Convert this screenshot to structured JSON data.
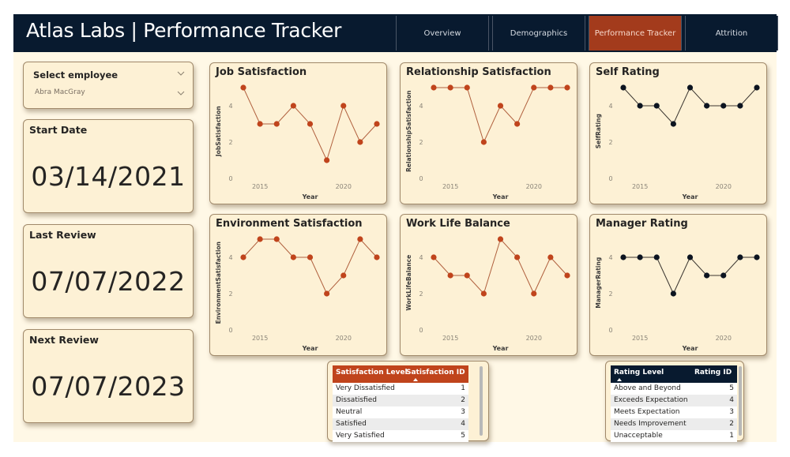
{
  "header": {
    "title": "Atlas Labs | Performance Tracker",
    "tabs": [
      {
        "label": "Overview",
        "active": false
      },
      {
        "label": "Demographics",
        "active": false
      },
      {
        "label": "Performance Tracker",
        "active": true
      },
      {
        "label": "Attrition",
        "active": false
      }
    ]
  },
  "slicer": {
    "label": "Select employee",
    "value": "Abra MacGray"
  },
  "kpis": {
    "start_date": {
      "label": "Start Date",
      "value": "03/14/2021"
    },
    "last_review": {
      "label": "Last Review",
      "value": "07/07/2022"
    },
    "next_review": {
      "label": "Next Review",
      "value": "07/07/2023"
    }
  },
  "colors": {
    "header_bg": "#081a2f",
    "accent": "#a33b1c",
    "page_bg": "#fff8e6",
    "card_bg": "#fdf1d5",
    "satisfaction_series": "#c0441c",
    "rating_series": "#0c1420"
  },
  "tables": {
    "satisfaction": {
      "columns": [
        "Satisfaction Level",
        "Satisfaction ID"
      ],
      "rows": [
        [
          "Very Dissatisfied",
          "1"
        ],
        [
          "Dissatisfied",
          "2"
        ],
        [
          "Neutral",
          "3"
        ],
        [
          "Satisfied",
          "4"
        ],
        [
          "Very Satisfied",
          "5"
        ]
      ]
    },
    "rating": {
      "columns": [
        "Rating Level",
        "Rating ID"
      ],
      "rows": [
        [
          "Above and Beyond",
          "5"
        ],
        [
          "Exceeds Expectation",
          "4"
        ],
        [
          "Meets Expectation",
          "3"
        ],
        [
          "Needs Improvement",
          "2"
        ],
        [
          "Unacceptable",
          "1"
        ]
      ]
    }
  },
  "chart_data": [
    {
      "type": "line",
      "title": "Job Satisfaction",
      "xlabel": "Year",
      "ylabel": "JobSatisfaction",
      "x": [
        2014,
        2015,
        2016,
        2017,
        2018,
        2019,
        2020,
        2021,
        2022
      ],
      "values": [
        5,
        3,
        3,
        4,
        3,
        1,
        4,
        2,
        3
      ],
      "xticks": [
        "2015",
        "2020"
      ],
      "yticks": [
        "0",
        "2",
        "4"
      ],
      "ylim": [
        0,
        5
      ],
      "color": "#c0441c",
      "grid": false
    },
    {
      "type": "line",
      "title": "Relationship Satisfaction",
      "xlabel": "Year",
      "ylabel": "RelationshipSatisfaction",
      "x": [
        2014,
        2015,
        2016,
        2017,
        2018,
        2019,
        2020,
        2021,
        2022
      ],
      "values": [
        5,
        5,
        5,
        2,
        4,
        3,
        5,
        5,
        5
      ],
      "xticks": [
        "2015",
        "2020"
      ],
      "yticks": [
        "0",
        "2",
        "4"
      ],
      "ylim": [
        0,
        5
      ],
      "color": "#c0441c",
      "grid": false
    },
    {
      "type": "line",
      "title": "Self Rating",
      "xlabel": "Year",
      "ylabel": "SelfRating",
      "x": [
        2014,
        2015,
        2016,
        2017,
        2018,
        2019,
        2020,
        2021,
        2022
      ],
      "values": [
        5,
        4,
        4,
        3,
        5,
        4,
        4,
        4,
        5
      ],
      "xticks": [
        "2015",
        "2020"
      ],
      "yticks": [
        "0",
        "2",
        "4"
      ],
      "ylim": [
        0,
        5
      ],
      "color": "#0c1420",
      "grid": false
    },
    {
      "type": "line",
      "title": "Environment Satisfaction",
      "xlabel": "Year",
      "ylabel": "EnvironmentSatisfaction",
      "x": [
        2014,
        2015,
        2016,
        2017,
        2018,
        2019,
        2020,
        2021,
        2022
      ],
      "values": [
        4,
        5,
        5,
        4,
        4,
        2,
        3,
        5,
        4
      ],
      "xticks": [
        "2015",
        "2020"
      ],
      "yticks": [
        "0",
        "2",
        "4"
      ],
      "ylim": [
        0,
        5
      ],
      "color": "#c0441c",
      "grid": false
    },
    {
      "type": "line",
      "title": "Work Life Balance",
      "xlabel": "Year",
      "ylabel": "WorkLifeBalance",
      "x": [
        2014,
        2015,
        2016,
        2017,
        2018,
        2019,
        2020,
        2021,
        2022
      ],
      "values": [
        4,
        3,
        3,
        2,
        5,
        4,
        2,
        4,
        3
      ],
      "xticks": [
        "2015",
        "2020"
      ],
      "yticks": [
        "0",
        "2",
        "4"
      ],
      "ylim": [
        0,
        5
      ],
      "color": "#c0441c",
      "grid": false
    },
    {
      "type": "line",
      "title": "Manager Rating",
      "xlabel": "Year",
      "ylabel": "ManagerRating",
      "x": [
        2014,
        2015,
        2016,
        2017,
        2018,
        2019,
        2020,
        2021,
        2022
      ],
      "values": [
        4,
        4,
        4,
        2,
        4,
        3,
        3,
        4,
        4
      ],
      "xticks": [
        "2015",
        "2020"
      ],
      "yticks": [
        "0",
        "2",
        "4"
      ],
      "ylim": [
        0,
        5
      ],
      "color": "#0c1420",
      "grid": false
    }
  ]
}
